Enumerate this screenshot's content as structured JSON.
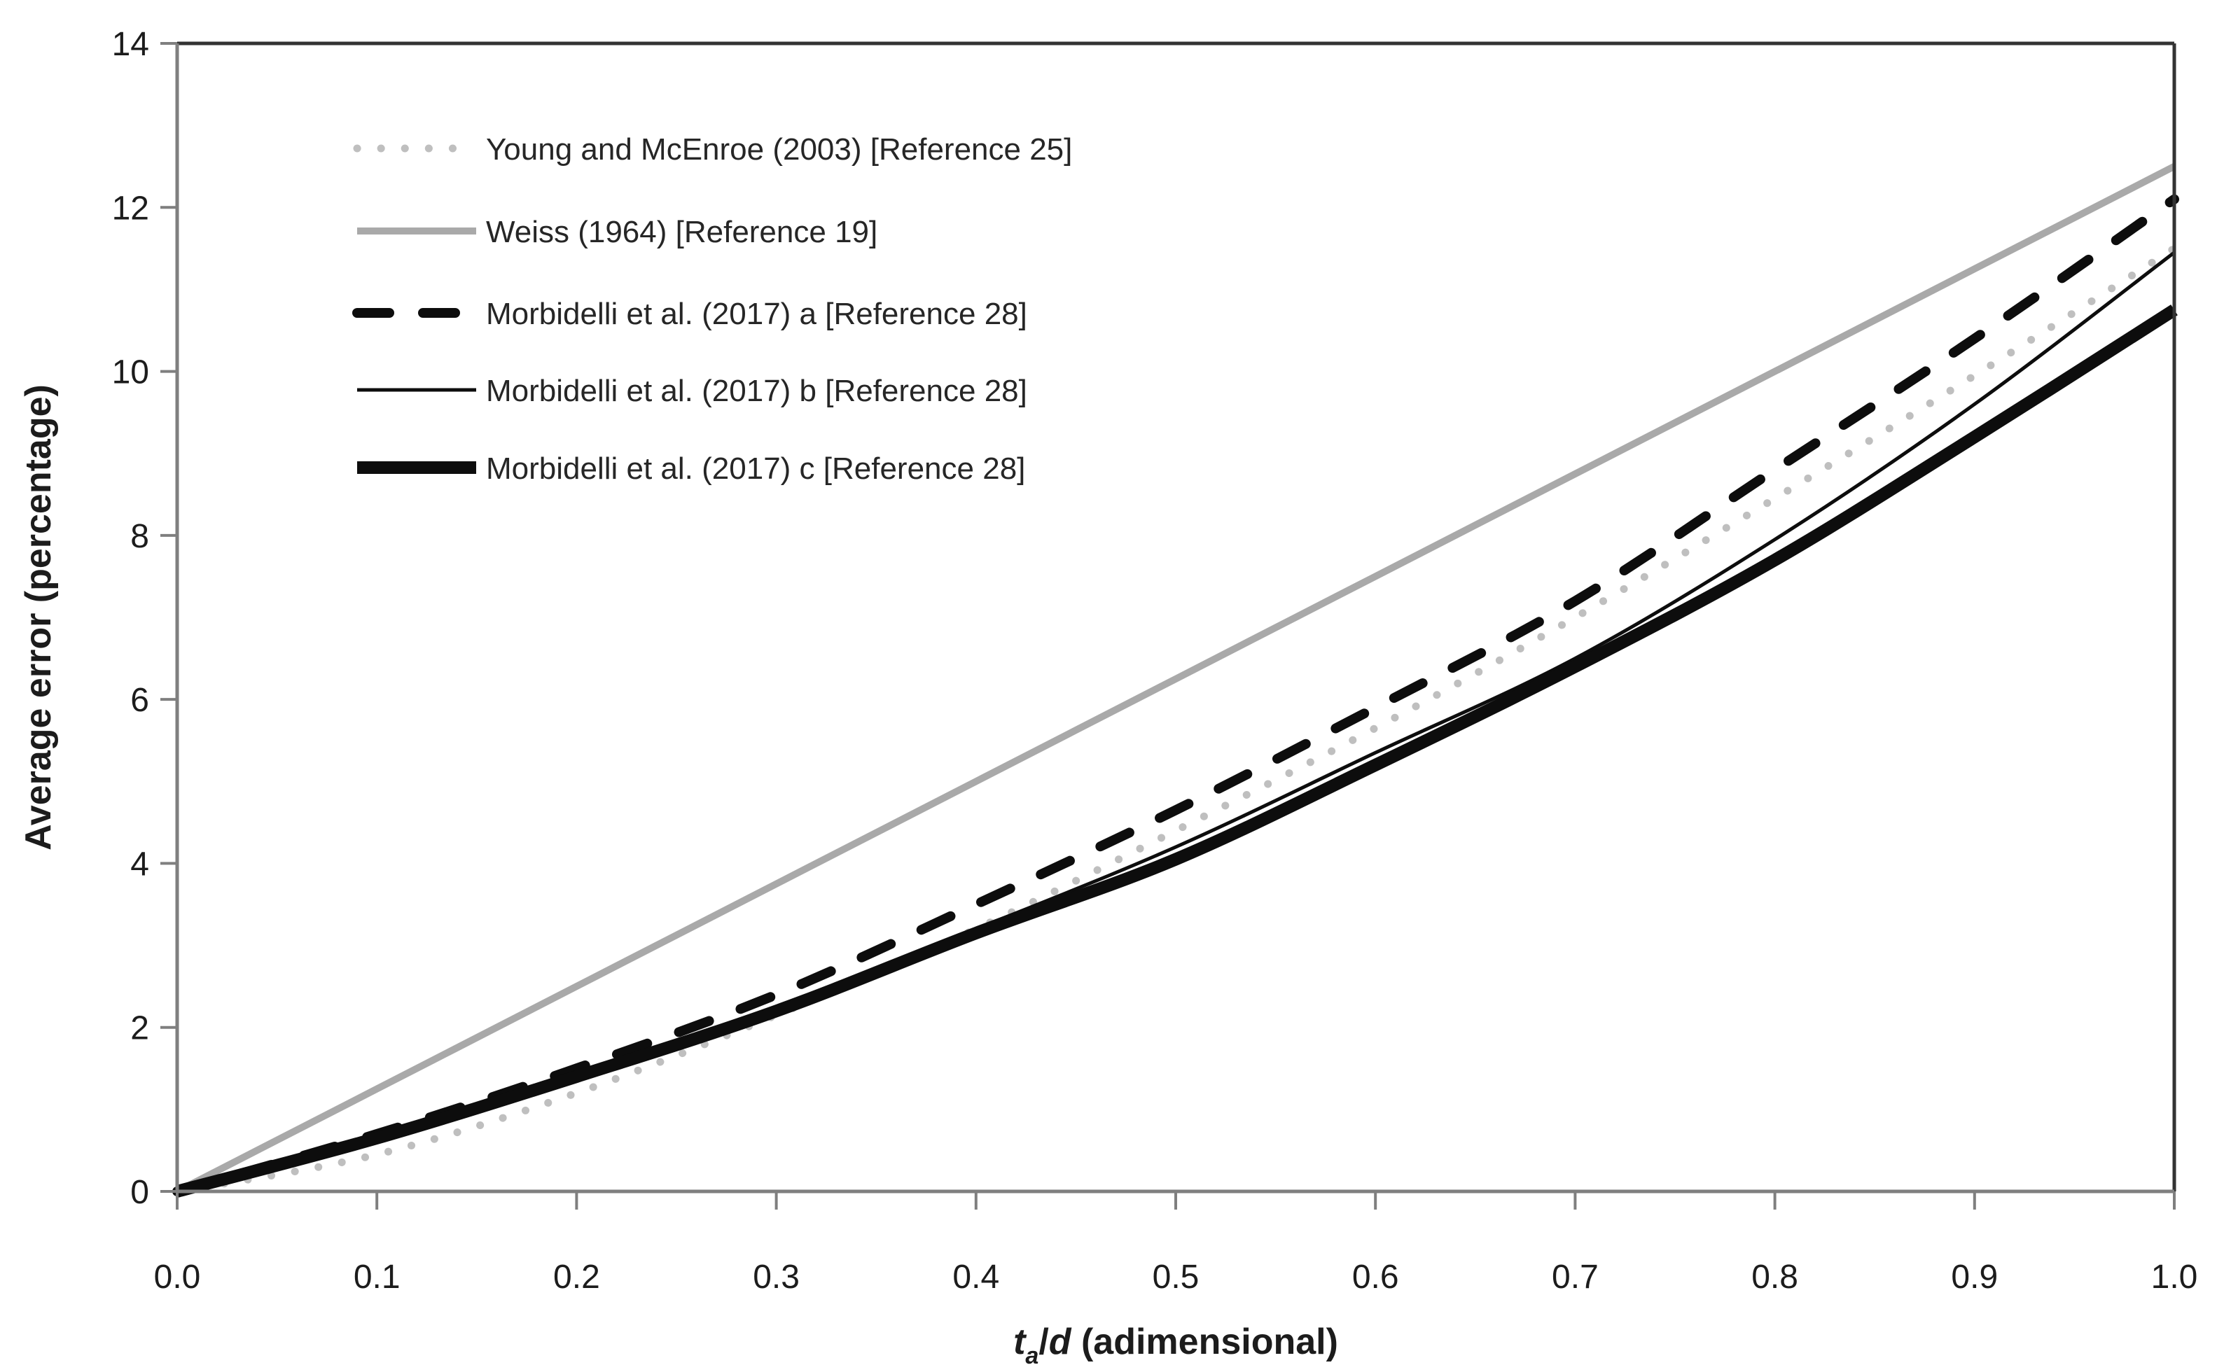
{
  "figure": {
    "background": "#ffffff",
    "frame_color": "#333333",
    "axis_color": "#7f7f7f",
    "tick_text_color": "#1c1c1c"
  },
  "chart_data": {
    "type": "line",
    "title": "",
    "ylabel": "Average error (percentage)",
    "xlabel_plain": "ta/d (adimensional)",
    "xlabel_segments": [
      {
        "text": "t",
        "italic": true,
        "bold": true,
        "sub": false
      },
      {
        "text": "a",
        "italic": true,
        "bold": true,
        "sub": true
      },
      {
        "text": "/",
        "italic": false,
        "bold": true,
        "sub": false
      },
      {
        "text": "d",
        "italic": true,
        "bold": true,
        "sub": false
      },
      {
        "text": " (adimensional)",
        "italic": false,
        "bold": true,
        "sub": false
      }
    ],
    "xlim": [
      0.0,
      1.0
    ],
    "ylim": [
      0,
      14
    ],
    "x_ticks": [
      "0.0",
      "0.1",
      "0.2",
      "0.3",
      "0.4",
      "0.5",
      "0.6",
      "0.7",
      "0.8",
      "0.9",
      "1.0"
    ],
    "y_ticks": [
      0,
      2,
      4,
      6,
      8,
      10,
      12,
      14
    ],
    "grid": false,
    "legend_position": "upper-left-inside",
    "x": [
      0.0,
      0.1,
      0.2,
      0.3,
      0.4,
      0.5,
      0.6,
      0.7,
      0.8,
      0.9,
      1.0
    ],
    "series": [
      {
        "name": "Young and McEnroe (2003) [Reference 25]",
        "style": "dotted",
        "color": "#bfbfbf",
        "width": 11,
        "values": [
          0,
          0.45,
          1.2,
          2.15,
          3.2,
          4.4,
          5.65,
          7.0,
          8.45,
          9.95,
          11.5
        ]
      },
      {
        "name": "Weiss (1964) [Reference 19]",
        "style": "solid",
        "color": "#a9a9a9",
        "width": 10,
        "values": [
          0,
          1.25,
          2.5,
          3.75,
          5.0,
          6.25,
          7.5,
          8.75,
          10.0,
          11.25,
          12.5
        ]
      },
      {
        "name": "Morbidelli et al. (2017) a [Reference 28]",
        "style": "dashed",
        "color": "#0d0d0d",
        "width": 14,
        "values": [
          0,
          0.7,
          1.5,
          2.4,
          3.5,
          4.65,
          5.9,
          7.2,
          8.8,
          10.4,
          12.1
        ]
      },
      {
        "name": "Morbidelli et al. (2017) b [Reference 28]",
        "style": "solid",
        "color": "#0d0d0d",
        "width": 5,
        "values": [
          0,
          0.65,
          1.4,
          2.25,
          3.2,
          4.2,
          5.35,
          6.5,
          7.95,
          9.6,
          11.45
        ]
      },
      {
        "name": "Morbidelli et al. (2017) c [Reference 28]",
        "style": "solid",
        "color": "#0d0d0d",
        "width": 18,
        "values": [
          0,
          0.65,
          1.4,
          2.2,
          3.15,
          4.05,
          5.2,
          6.4,
          7.7,
          9.2,
          10.75
        ]
      }
    ]
  }
}
